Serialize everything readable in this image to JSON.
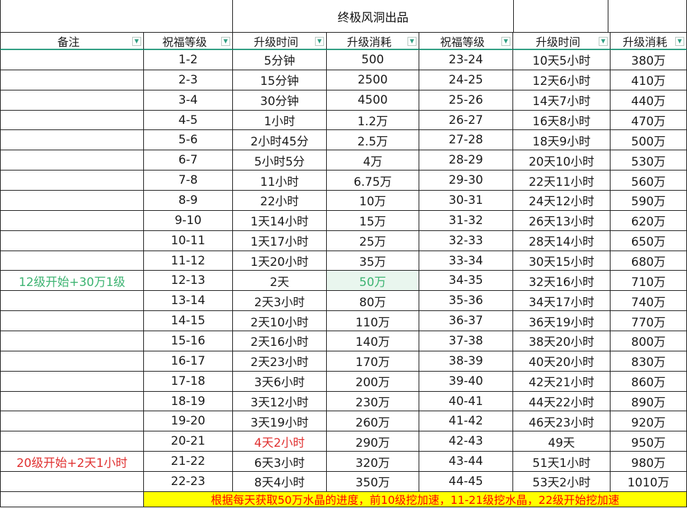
{
  "title": "终极风洞出品",
  "columns": [
    "备注",
    "祝福等级",
    "升级时间",
    "升级消耗",
    "祝福等级",
    "升级时间",
    "升级消耗"
  ],
  "filter_icon": "▼",
  "colors": {
    "header_underline": "#2f9e82",
    "green_text": "#3cb371",
    "green_cell_bg": "#e9f6ee",
    "red_text": "#e03131",
    "banner_bg": "#ffff00",
    "banner_text": "#fe0000"
  },
  "rows": [
    {
      "note": "",
      "left": {
        "level": "1-2",
        "time": "5分钟",
        "cost": "500"
      },
      "right": {
        "level": "23-24",
        "time": "10天5小时",
        "cost": "380万"
      }
    },
    {
      "note": "",
      "left": {
        "level": "2-3",
        "time": "15分钟",
        "cost": "2500"
      },
      "right": {
        "level": "24-25",
        "time": "12天6小时",
        "cost": "410万"
      }
    },
    {
      "note": "",
      "left": {
        "level": "3-4",
        "time": "30分钟",
        "cost": "4500"
      },
      "right": {
        "level": "25-26",
        "time": "14天7小时",
        "cost": "440万"
      }
    },
    {
      "note": "",
      "left": {
        "level": "4-5",
        "time": "1小时",
        "cost": "1.2万"
      },
      "right": {
        "level": "26-27",
        "time": "16天8小时",
        "cost": "470万"
      }
    },
    {
      "note": "",
      "left": {
        "level": "5-6",
        "time": "2小时45分",
        "cost": "2.5万"
      },
      "right": {
        "level": "27-28",
        "time": "18天9小时",
        "cost": "500万"
      }
    },
    {
      "note": "",
      "left": {
        "level": "6-7",
        "time": "5小时5分",
        "cost": "4万"
      },
      "right": {
        "level": "28-29",
        "time": "20天10小时",
        "cost": "530万"
      }
    },
    {
      "note": "",
      "left": {
        "level": "7-8",
        "time": "11小时",
        "cost": "6.75万"
      },
      "right": {
        "level": "29-30",
        "time": "22天11小时",
        "cost": "560万"
      }
    },
    {
      "note": "",
      "left": {
        "level": "8-9",
        "time": "22小时",
        "cost": "10万"
      },
      "right": {
        "level": "30-31",
        "time": "24天12小时",
        "cost": "590万"
      }
    },
    {
      "note": "",
      "left": {
        "level": "9-10",
        "time": "1天14小时",
        "cost": "15万"
      },
      "right": {
        "level": "31-32",
        "time": "26天13小时",
        "cost": "620万"
      }
    },
    {
      "note": "",
      "left": {
        "level": "10-11",
        "time": "1天17小时",
        "cost": "25万"
      },
      "right": {
        "level": "32-33",
        "time": "28天14小时",
        "cost": "650万"
      }
    },
    {
      "note": "",
      "left": {
        "level": "11-12",
        "time": "1天20小时",
        "cost": "35万"
      },
      "right": {
        "level": "33-34",
        "time": "30天15小时",
        "cost": "680万"
      }
    },
    {
      "note": "12级开始+30万1级",
      "note_style": "note-text-green",
      "cost_style": "cost-green",
      "left": {
        "level": "12-13",
        "time": "2天",
        "cost": "50万"
      },
      "right": {
        "level": "34-35",
        "time": "32天16小时",
        "cost": "710万"
      }
    },
    {
      "note": "",
      "left": {
        "level": "13-14",
        "time": "2天3小时",
        "cost": "80万"
      },
      "right": {
        "level": "35-36",
        "time": "34天17小时",
        "cost": "740万"
      }
    },
    {
      "note": "",
      "left": {
        "level": "14-15",
        "time": "2天10小时",
        "cost": "110万"
      },
      "right": {
        "level": "36-37",
        "time": "36天19小时",
        "cost": "770万"
      }
    },
    {
      "note": "",
      "left": {
        "level": "15-16",
        "time": "2天16小时",
        "cost": "140万"
      },
      "right": {
        "level": "37-38",
        "time": "38天20小时",
        "cost": "800万"
      }
    },
    {
      "note": "",
      "left": {
        "level": "16-17",
        "time": "2天23小时",
        "cost": "170万"
      },
      "right": {
        "level": "38-39",
        "time": "40天20小时",
        "cost": "830万"
      }
    },
    {
      "note": "",
      "left": {
        "level": "17-18",
        "time": "3天6小时",
        "cost": "200万"
      },
      "right": {
        "level": "39-40",
        "time": "42天21小时",
        "cost": "860万"
      }
    },
    {
      "note": "",
      "left": {
        "level": "18-19",
        "time": "3天12小时",
        "cost": "230万"
      },
      "right": {
        "level": "40-41",
        "time": "44天22小时",
        "cost": "890万"
      }
    },
    {
      "note": "",
      "left": {
        "level": "19-20",
        "time": "3天19小时",
        "cost": "260万"
      },
      "right": {
        "level": "41-42",
        "time": "46天23小时",
        "cost": "920万"
      }
    },
    {
      "note": "",
      "time_style": "time-red",
      "left": {
        "level": "20-21",
        "time": "4天2小时",
        "cost": "290万"
      },
      "right": {
        "level": "42-43",
        "time": "49天",
        "cost": "950万"
      }
    },
    {
      "note": "20级开始+2天1小时",
      "note_style": "note-text-red",
      "left": {
        "level": "21-22",
        "time": "6天3小时",
        "cost": "320万"
      },
      "right": {
        "level": "43-44",
        "time": "51天1小时",
        "cost": "980万"
      }
    },
    {
      "note": "",
      "left": {
        "level": "22-23",
        "time": "8天4小时",
        "cost": "350万"
      },
      "right": {
        "level": "44-45",
        "time": "53天2小时",
        "cost": "1010万"
      }
    }
  ],
  "banner": {
    "text": "根据每天获取50万水晶的进度，前10级挖加速，11-21级挖水晶，22级开始挖加速"
  }
}
